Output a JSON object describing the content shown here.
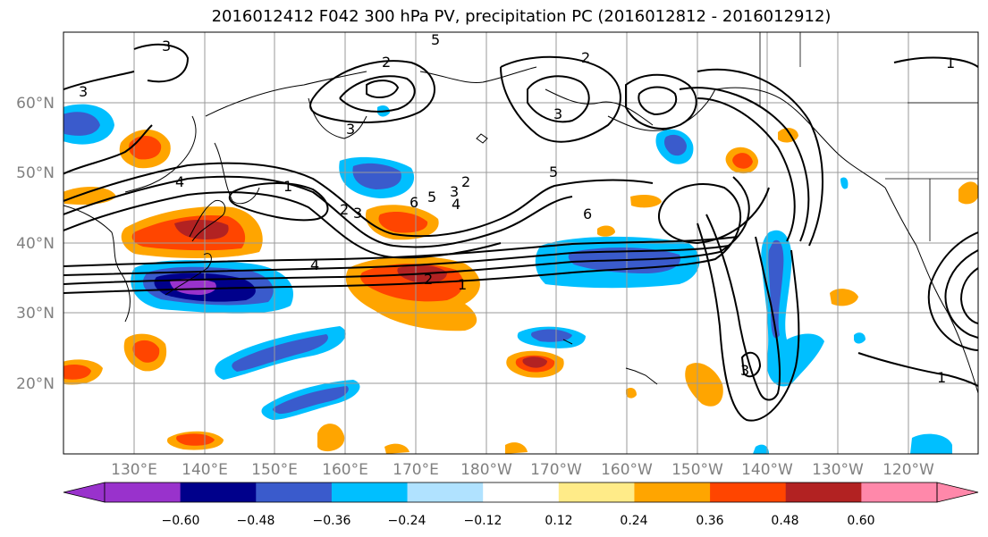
{
  "title": "2016012412 F042 300 hPa PV, precipitation PC (2016012812 - 2016012912)",
  "lat_labels": [
    "60°N",
    "50°N",
    "40°N",
    "30°N",
    "20°N"
  ],
  "lon_labels": [
    "130°E",
    "140°E",
    "150°E",
    "160°E",
    "170°E",
    "180°W",
    "170°W",
    "160°W",
    "150°W",
    "140°W",
    "130°W",
    "120°W"
  ],
  "colorbar": {
    "colors": [
      "#9932CC",
      "#00008B",
      "#3A5BCC",
      "#00BFFF",
      "#B0E2FF",
      "#FFFFFF",
      "#FFEB88",
      "#FFA500",
      "#FF4500",
      "#B22222",
      "#FF88AA"
    ],
    "tick_labels": [
      "−0.60",
      "−0.48",
      "−0.36",
      "−0.24",
      "−0.12",
      "0.12",
      "0.24",
      "0.36",
      "0.48",
      "0.60"
    ]
  },
  "contour_labels": [
    "3",
    "3",
    "5",
    "2",
    "2",
    "4",
    "1",
    "2",
    "3",
    "6",
    "5",
    "4",
    "3",
    "2",
    "6",
    "5",
    "1",
    "2",
    "4",
    "3",
    "3",
    "1",
    "1",
    "3"
  ]
}
